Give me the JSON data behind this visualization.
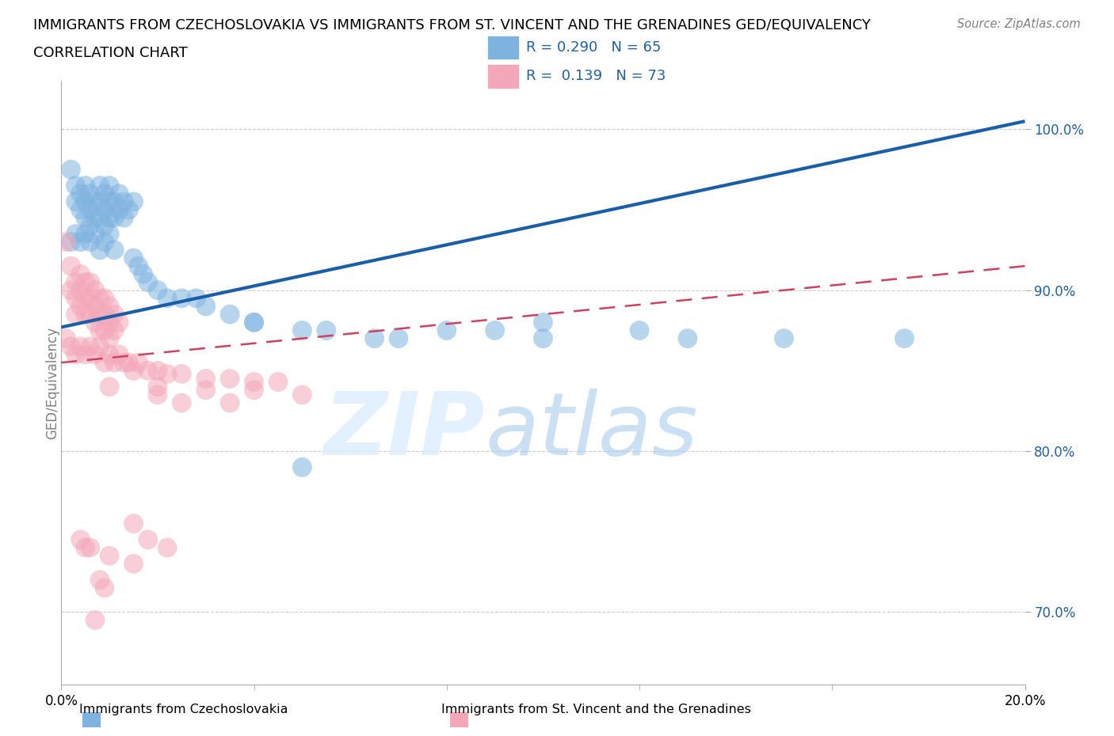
{
  "title_line1": "IMMIGRANTS FROM CZECHOSLOVAKIA VS IMMIGRANTS FROM ST. VINCENT AND THE GRENADINES GED/EQUIVALENCY",
  "title_line2": "CORRELATION CHART",
  "source_text": "Source: ZipAtlas.com",
  "ylabel_label": "GED/Equivalency",
  "legend_label1": "Immigrants from Czechoslovakia",
  "legend_label2": "Immigrants from St. Vincent and the Grenadines",
  "r1": 0.29,
  "n1": 65,
  "r2": 0.139,
  "n2": 73,
  "color1": "#7EB3E0",
  "color2": "#F4A7B9",
  "line_color1": "#1A5EA8",
  "line_color2": "#D04060",
  "tick_color": "#2060A0",
  "background_color": "#FFFFFF",
  "xmin": 0.0,
  "xmax": 0.2,
  "ymin": 0.655,
  "ymax": 1.03,
  "ytick_vals": [
    0.7,
    0.8,
    0.9,
    1.0
  ],
  "ytick_labels": [
    "70.0%",
    "80.0%",
    "90.0%",
    "100.0%"
  ],
  "xtick_vals": [
    0.0,
    0.2
  ],
  "xtick_labels": [
    "0.0%",
    "20.0%"
  ],
  "blue_line_x": [
    0.0,
    0.2
  ],
  "blue_line_y": [
    0.877,
    1.005
  ],
  "pink_line_x": [
    0.0,
    0.2
  ],
  "pink_line_y": [
    0.855,
    0.915
  ],
  "czech_x": [
    0.002,
    0.003,
    0.003,
    0.004,
    0.004,
    0.005,
    0.005,
    0.005,
    0.006,
    0.006,
    0.006,
    0.007,
    0.007,
    0.008,
    0.008,
    0.008,
    0.009,
    0.009,
    0.009,
    0.01,
    0.01,
    0.01,
    0.011,
    0.011,
    0.012,
    0.012,
    0.013,
    0.013,
    0.014,
    0.015,
    0.002,
    0.003,
    0.004,
    0.005,
    0.006,
    0.007,
    0.008,
    0.009,
    0.01,
    0.011,
    0.015,
    0.016,
    0.017,
    0.018,
    0.02,
    0.022,
    0.025,
    0.028,
    0.03,
    0.035,
    0.04,
    0.05,
    0.055,
    0.065,
    0.08,
    0.09,
    0.1,
    0.12,
    0.15,
    0.175,
    0.1,
    0.13,
    0.05,
    0.07,
    0.04
  ],
  "czech_y": [
    0.975,
    0.965,
    0.955,
    0.96,
    0.95,
    0.965,
    0.955,
    0.945,
    0.96,
    0.95,
    0.94,
    0.955,
    0.945,
    0.965,
    0.955,
    0.945,
    0.96,
    0.95,
    0.94,
    0.965,
    0.955,
    0.945,
    0.955,
    0.945,
    0.96,
    0.95,
    0.955,
    0.945,
    0.95,
    0.955,
    0.93,
    0.935,
    0.93,
    0.935,
    0.93,
    0.935,
    0.925,
    0.93,
    0.935,
    0.925,
    0.92,
    0.915,
    0.91,
    0.905,
    0.9,
    0.895,
    0.895,
    0.895,
    0.89,
    0.885,
    0.88,
    0.875,
    0.875,
    0.87,
    0.875,
    0.875,
    0.88,
    0.875,
    0.87,
    0.87,
    0.87,
    0.87,
    0.79,
    0.87,
    0.88
  ],
  "svg_x": [
    0.001,
    0.002,
    0.002,
    0.003,
    0.003,
    0.003,
    0.004,
    0.004,
    0.004,
    0.005,
    0.005,
    0.005,
    0.006,
    0.006,
    0.006,
    0.007,
    0.007,
    0.007,
    0.008,
    0.008,
    0.008,
    0.009,
    0.009,
    0.009,
    0.01,
    0.01,
    0.01,
    0.011,
    0.011,
    0.012,
    0.001,
    0.002,
    0.003,
    0.004,
    0.005,
    0.006,
    0.007,
    0.008,
    0.009,
    0.01,
    0.011,
    0.012,
    0.013,
    0.014,
    0.015,
    0.016,
    0.018,
    0.02,
    0.022,
    0.025,
    0.03,
    0.035,
    0.04,
    0.045,
    0.01,
    0.02,
    0.03,
    0.04,
    0.05,
    0.02,
    0.025,
    0.035,
    0.015,
    0.018,
    0.022,
    0.004,
    0.005,
    0.006,
    0.01,
    0.015,
    0.008,
    0.009,
    0.007
  ],
  "svg_y": [
    0.93,
    0.915,
    0.9,
    0.905,
    0.895,
    0.885,
    0.91,
    0.9,
    0.89,
    0.905,
    0.895,
    0.885,
    0.905,
    0.895,
    0.885,
    0.9,
    0.89,
    0.88,
    0.895,
    0.885,
    0.875,
    0.895,
    0.885,
    0.875,
    0.89,
    0.88,
    0.87,
    0.885,
    0.875,
    0.88,
    0.87,
    0.865,
    0.86,
    0.865,
    0.86,
    0.865,
    0.86,
    0.865,
    0.855,
    0.86,
    0.855,
    0.86,
    0.855,
    0.855,
    0.85,
    0.855,
    0.85,
    0.85,
    0.848,
    0.848,
    0.845,
    0.845,
    0.843,
    0.843,
    0.84,
    0.84,
    0.838,
    0.838,
    0.835,
    0.835,
    0.83,
    0.83,
    0.755,
    0.745,
    0.74,
    0.745,
    0.74,
    0.74,
    0.735,
    0.73,
    0.72,
    0.715,
    0.695
  ]
}
